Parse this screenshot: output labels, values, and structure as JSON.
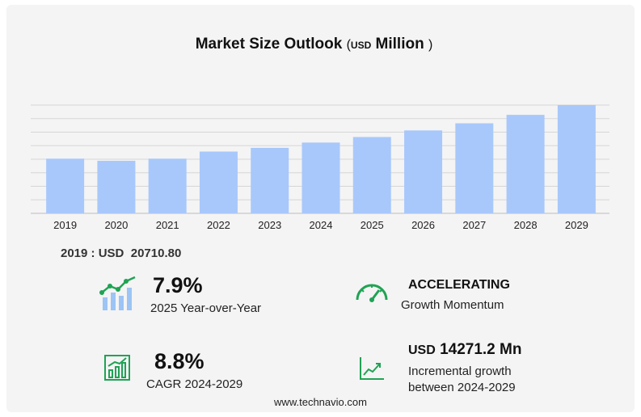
{
  "header": {
    "title_main": "Market Size Outlook",
    "title_open": "(",
    "title_unit": "USD",
    "title_scale": "Million",
    "title_close": ")"
  },
  "chart_data": {
    "type": "bar",
    "title": "Market Size Outlook ( USD Million )",
    "categories": [
      "2019",
      "2020",
      "2021",
      "2022",
      "2023",
      "2024",
      "2025",
      "2026",
      "2027",
      "2028",
      "2029"
    ],
    "values": [
      20710.8,
      19900,
      20700,
      23400,
      24800,
      26800,
      28900,
      31400,
      34100,
      37300,
      41000
    ],
    "ylim": [
      0,
      41000
    ],
    "bar_color": "#a8c8fb",
    "grid": true,
    "gridline_color": "#d6d6d6"
  },
  "base": {
    "year": "2019",
    "sep": " : ",
    "currency": "USD",
    "value": "20710.80"
  },
  "stats": {
    "yoy": {
      "value": "7.9%",
      "label": "2025 Year-over-Year"
    },
    "momentum": {
      "value": "ACCELERATING",
      "label": "Growth Momentum"
    },
    "cagr": {
      "value": "8.8%",
      "label": "CAGR 2024-2029"
    },
    "incremental": {
      "currency": "USD",
      "value": "14271.2 Mn",
      "label_line1": "Incremental growth",
      "label_line2": "between 2024-2029"
    }
  },
  "icons": {
    "yoy": "bar-chart-trend-icon",
    "momentum": "speedometer-icon",
    "cagr": "bar-chart-growth-icon",
    "incremental": "line-chart-icon",
    "accent": "#1fa354"
  },
  "footer": {
    "url": "www.technavio.com"
  }
}
